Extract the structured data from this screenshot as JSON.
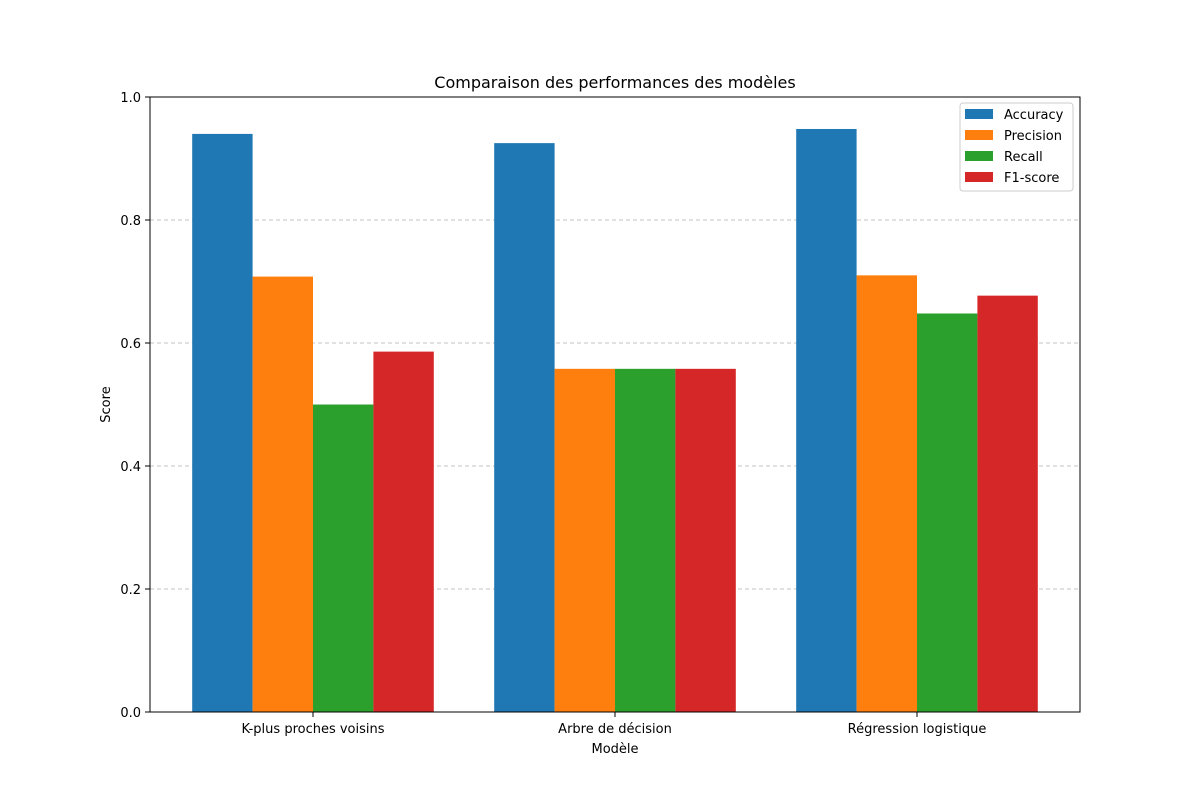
{
  "chart_data": {
    "type": "bar",
    "title": "Comparaison des performances des modèles",
    "xlabel": "Modèle",
    "ylabel": "Score",
    "ylim": [
      0,
      1
    ],
    "yticks": [
      "0.0",
      "0.2",
      "0.4",
      "0.6",
      "0.8",
      "1.0"
    ],
    "grid": "y-dashed",
    "legend_position": "top-right",
    "categories": [
      "K-plus proches voisins",
      "Arbre de décision",
      "Régression logistique"
    ],
    "series": [
      {
        "name": "Accuracy",
        "color": "#1f77b4",
        "values": [
          0.94,
          0.925,
          0.948
        ]
      },
      {
        "name": "Precision",
        "color": "#ff7f0e",
        "values": [
          0.708,
          0.558,
          0.71
        ]
      },
      {
        "name": "Recall",
        "color": "#2ca02c",
        "values": [
          0.5,
          0.558,
          0.648
        ]
      },
      {
        "name": "F1-score",
        "color": "#d62728",
        "values": [
          0.586,
          0.558,
          0.677
        ]
      }
    ]
  }
}
